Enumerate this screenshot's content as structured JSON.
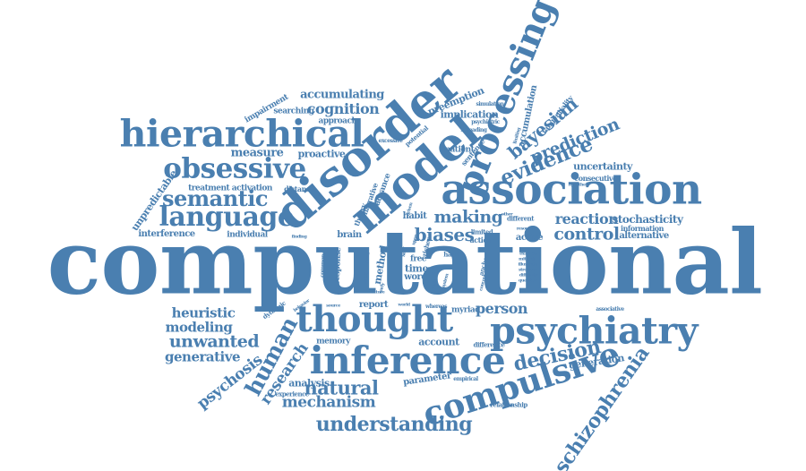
{
  "color": "#4a7fb0",
  "words": [
    {
      "text": "computational"
    },
    {
      "text": "disorder"
    },
    {
      "text": "association"
    },
    {
      "text": "model"
    },
    {
      "text": "hierarchical"
    },
    {
      "text": "processing"
    },
    {
      "text": "psychiatry"
    },
    {
      "text": "inference"
    },
    {
      "text": "thought"
    },
    {
      "text": "compulsive"
    },
    {
      "text": "obsessive"
    },
    {
      "text": "language"
    },
    {
      "text": "semantic"
    },
    {
      "text": "schizophrenia"
    },
    {
      "text": "understanding"
    },
    {
      "text": "evidence"
    },
    {
      "text": "bayesian"
    },
    {
      "text": "prediction"
    },
    {
      "text": "human"
    },
    {
      "text": "decision"
    },
    {
      "text": "natural"
    },
    {
      "text": "mechanism"
    },
    {
      "text": "research"
    },
    {
      "text": "psychosis"
    },
    {
      "text": "unwanted"
    },
    {
      "text": "heuristic"
    },
    {
      "text": "modeling"
    },
    {
      "text": "generative"
    },
    {
      "text": "cognition"
    },
    {
      "text": "biases"
    },
    {
      "text": "making"
    },
    {
      "text": "control"
    },
    {
      "text": "reaction"
    },
    {
      "text": "person"
    },
    {
      "text": "accumulating"
    },
    {
      "text": "measure"
    },
    {
      "text": "proactive"
    },
    {
      "text": "unpredictable"
    },
    {
      "text": "impairment"
    },
    {
      "text": "searching"
    },
    {
      "text": "approach"
    },
    {
      "text": "preemption"
    },
    {
      "text": "implication"
    },
    {
      "text": "accumulation"
    },
    {
      "text": "tangentiality"
    },
    {
      "text": "uncertainty"
    },
    {
      "text": "stochasticity"
    },
    {
      "text": "alternative"
    },
    {
      "text": "information"
    },
    {
      "text": "consecutive"
    },
    {
      "text": "generation"
    },
    {
      "text": "interference"
    },
    {
      "text": "individual"
    },
    {
      "text": "treatment activation"
    },
    {
      "text": "distance"
    },
    {
      "text": "report"
    },
    {
      "text": "account"
    },
    {
      "text": "memory"
    },
    {
      "text": "analysis"
    },
    {
      "text": "parameter"
    },
    {
      "text": "experience"
    },
    {
      "text": "difference"
    },
    {
      "text": "relationship"
    },
    {
      "text": "active"
    },
    {
      "text": "method"
    },
    {
      "text": "time"
    },
    {
      "text": "word"
    },
    {
      "text": "free"
    },
    {
      "text": "habit"
    },
    {
      "text": "brain"
    },
    {
      "text": "response"
    },
    {
      "text": "patient"
    },
    {
      "text": "sentence"
    },
    {
      "text": "advance"
    },
    {
      "text": "narrative"
    },
    {
      "text": "theory"
    },
    {
      "text": "potential"
    },
    {
      "text": "excessive"
    },
    {
      "text": "simulation"
    },
    {
      "text": "psychiatric"
    },
    {
      "text": "spreading"
    },
    {
      "text": "different"
    },
    {
      "text": "resource"
    },
    {
      "text": "limited"
    },
    {
      "text": "action"
    },
    {
      "text": "hand"
    },
    {
      "text": "dynamic"
    },
    {
      "text": "behavior"
    },
    {
      "text": "world"
    },
    {
      "text": "whereas"
    },
    {
      "text": "myriad"
    },
    {
      "text": "empirical"
    },
    {
      "text": "associative"
    },
    {
      "text": "example"
    },
    {
      "text": "mitigate"
    },
    {
      "text": "illustrate"
    },
    {
      "text": "stronger"
    },
    {
      "text": "difficulty"
    },
    {
      "text": "question"
    },
    {
      "text": "hypothesi"
    },
    {
      "text": "common"
    },
    {
      "text": "source"
    },
    {
      "text": "finding"
    },
    {
      "text": "future"
    },
    {
      "text": "anchor"
    },
    {
      "text": "richer"
    },
    {
      "text": "upon"
    },
    {
      "text": "self"
    },
    {
      "text": "driven"
    },
    {
      "text": "event"
    },
    {
      "text": "need"
    },
    {
      "text": "occur"
    },
    {
      "text": "goal"
    },
    {
      "text": "system"
    },
    {
      "text": "scale"
    },
    {
      "text": "other"
    },
    {
      "text": "early"
    },
    {
      "text": "limiting"
    },
    {
      "text": "concept"
    }
  ]
}
